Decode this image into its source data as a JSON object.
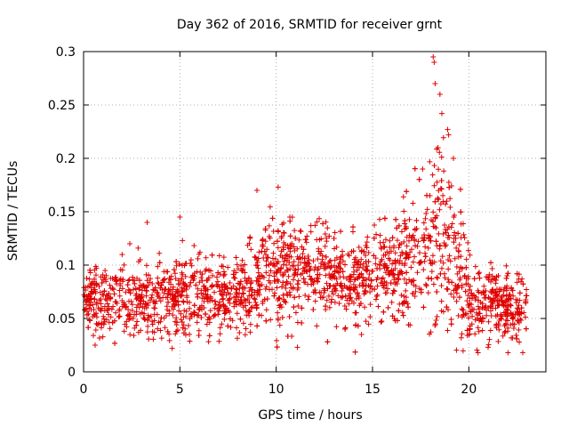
{
  "chart_data": {
    "type": "scatter",
    "title": "Day 362 of 2016, SRMTID for receiver grnt",
    "xlabel": "GPS time / hours",
    "ylabel": "SRMTID / TECUs",
    "xlim": [
      0,
      24
    ],
    "ylim": [
      0,
      0.3
    ],
    "xticks": [
      0,
      5,
      10,
      15,
      20
    ],
    "xtick_labels": [
      "0",
      "5",
      "10",
      "15",
      "20"
    ],
    "yticks": [
      0,
      0.05,
      0.1,
      0.15,
      0.2,
      0.25,
      0.3
    ],
    "ytick_labels": [
      "0",
      "0.05",
      "0.1",
      "0.15",
      "0.2",
      "0.25",
      "0.3"
    ],
    "grid": true,
    "marker": "+",
    "series": [
      {
        "name": "SRMTID",
        "color": "#e00000",
        "data_range_hours": [
          0,
          23
        ],
        "level_profile": {
          "t": [
            0,
            1,
            2,
            3,
            4,
            5,
            6,
            7,
            8,
            9,
            10,
            11,
            12,
            13,
            14,
            15,
            16,
            16.5,
            17,
            17.5,
            18,
            18.5,
            19,
            19.5,
            20,
            21,
            22,
            23
          ],
          "median": [
            0.068,
            0.068,
            0.069,
            0.07,
            0.066,
            0.07,
            0.073,
            0.075,
            0.073,
            0.088,
            0.1,
            0.092,
            0.095,
            0.09,
            0.085,
            0.09,
            0.095,
            0.1,
            0.105,
            0.115,
            0.12,
            0.125,
            0.115,
            0.1,
            0.068,
            0.065,
            0.063,
            0.06
          ],
          "spread": [
            0.018,
            0.018,
            0.018,
            0.02,
            0.018,
            0.02,
            0.02,
            0.02,
            0.02,
            0.025,
            0.03,
            0.028,
            0.028,
            0.025,
            0.025,
            0.025,
            0.025,
            0.03,
            0.035,
            0.04,
            0.045,
            0.05,
            0.045,
            0.035,
            0.02,
            0.02,
            0.02,
            0.02
          ]
        },
        "notable_points": [
          {
            "x": 9.0,
            "y": 0.17
          },
          {
            "x": 10.1,
            "y": 0.173
          },
          {
            "x": 17.6,
            "y": 0.19
          },
          {
            "x": 18.15,
            "y": 0.295
          },
          {
            "x": 18.2,
            "y": 0.29
          },
          {
            "x": 18.25,
            "y": 0.27
          },
          {
            "x": 18.5,
            "y": 0.26
          },
          {
            "x": 18.6,
            "y": 0.242
          },
          {
            "x": 18.9,
            "y": 0.227
          },
          {
            "x": 18.95,
            "y": 0.222
          },
          {
            "x": 18.4,
            "y": 0.21
          },
          {
            "x": 19.2,
            "y": 0.2
          },
          {
            "x": 4.6,
            "y": 0.022
          },
          {
            "x": 11.1,
            "y": 0.023
          },
          {
            "x": 21.0,
            "y": 0.023
          },
          {
            "x": 22.8,
            "y": 0.018
          },
          {
            "x": 0.6,
            "y": 0.025
          },
          {
            "x": 3.3,
            "y": 0.14
          },
          {
            "x": 5.0,
            "y": 0.145
          },
          {
            "x": 2.4,
            "y": 0.12
          }
        ]
      }
    ]
  }
}
